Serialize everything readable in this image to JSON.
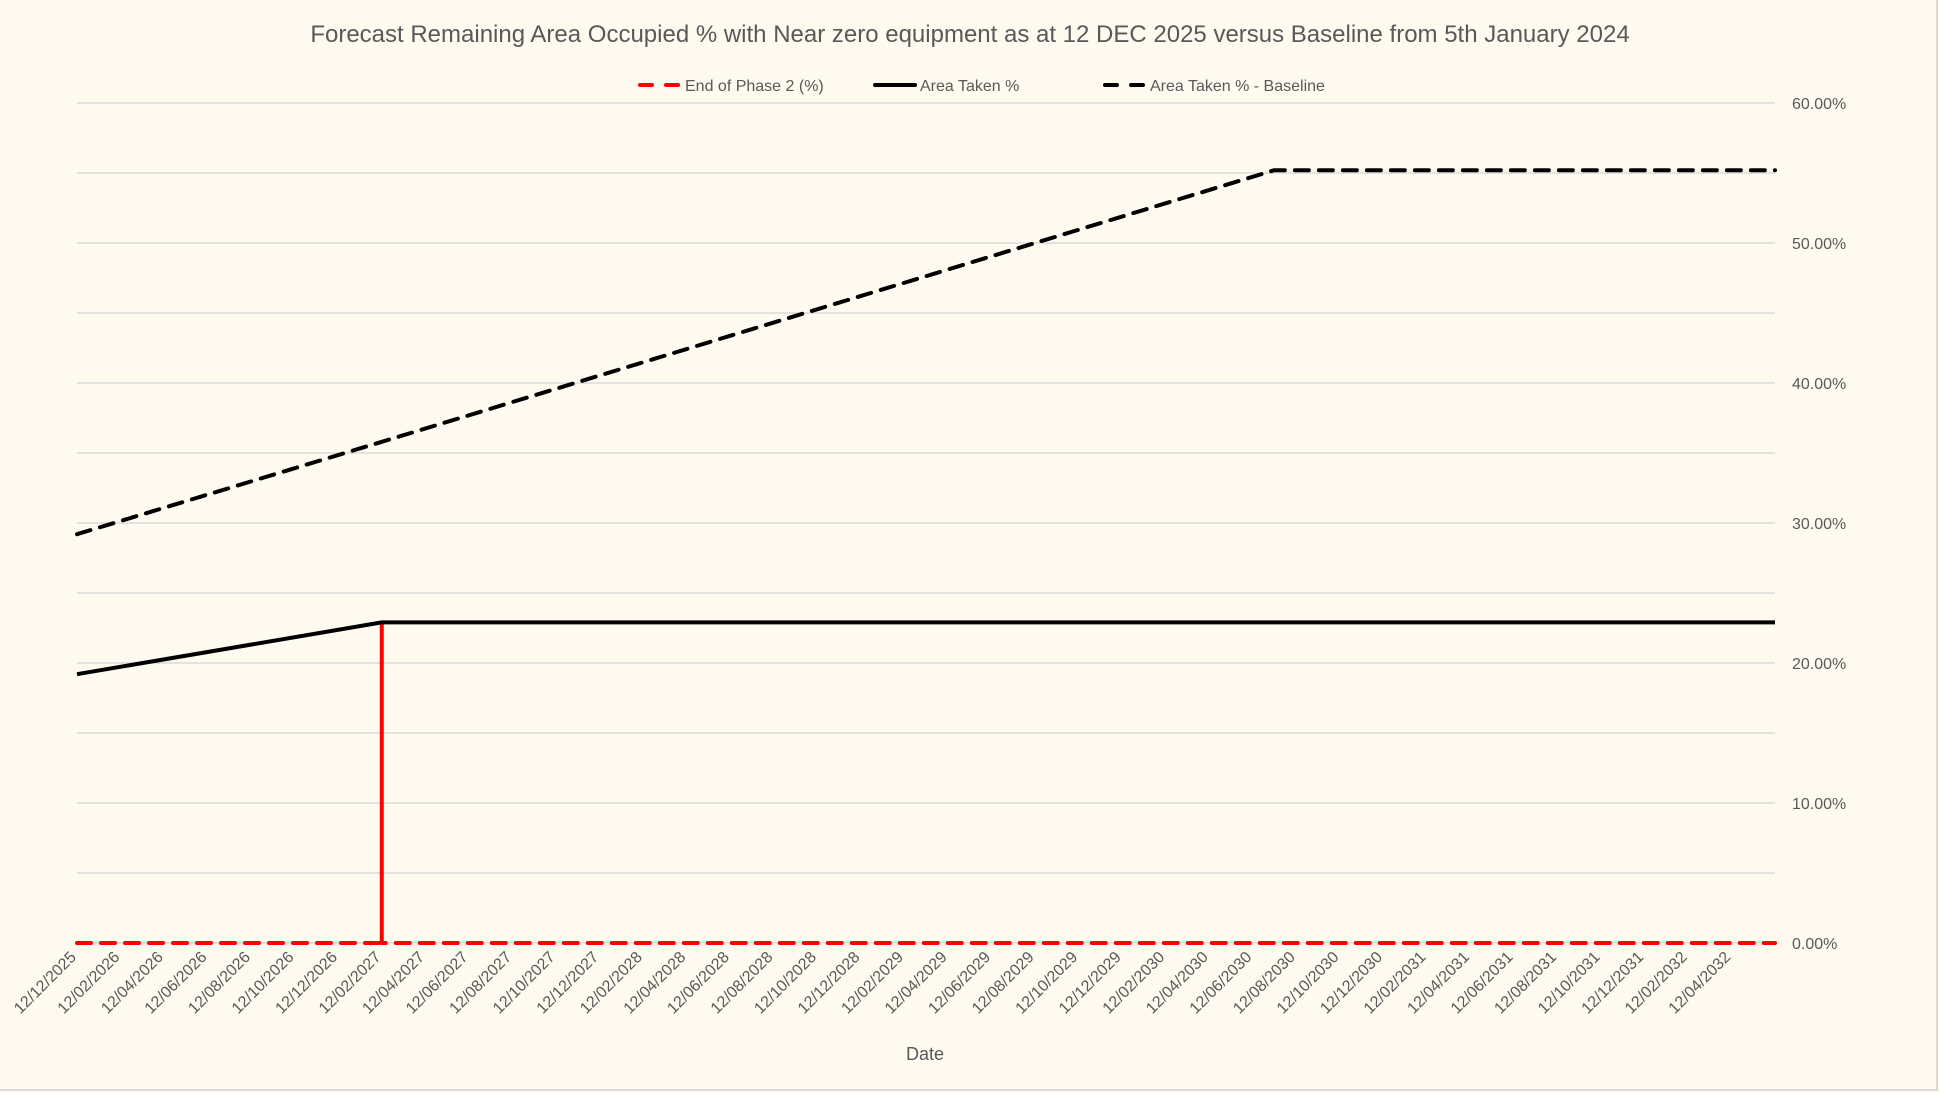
{
  "chart_data": {
    "type": "line",
    "title": "Forecast Remaining Area Occupied % with Near zero equipment as at 12 DEC 2025 versus Baseline from 5th January 2024",
    "xlabel": "Date",
    "ylabel": "",
    "ylim": [
      0,
      60
    ],
    "y_tick_step": 10,
    "y_gridline_step": 5,
    "y_axis_side": "right",
    "y_tick_labels": [
      "0.00%",
      "10.00%",
      "20.00%",
      "30.00%",
      "40.00%",
      "50.00%",
      "60.00%"
    ],
    "x_unit": "months since 12/12/2025",
    "xlim": [
      0,
      78
    ],
    "x_tick_labels": [
      "12/12/2025",
      "12/02/2026",
      "12/04/2026",
      "12/06/2026",
      "12/08/2026",
      "12/10/2026",
      "12/12/2026",
      "12/02/2027",
      "12/04/2027",
      "12/06/2027",
      "12/08/2027",
      "12/10/2027",
      "12/12/2027",
      "12/02/2028",
      "12/04/2028",
      "12/06/2028",
      "12/08/2028",
      "12/10/2028",
      "12/12/2028",
      "12/02/2029",
      "12/04/2029",
      "12/06/2029",
      "12/08/2029",
      "12/10/2029",
      "12/12/2029",
      "12/02/2030",
      "12/04/2030",
      "12/06/2030",
      "12/08/2030",
      "12/10/2030",
      "12/12/2030",
      "12/02/2031",
      "12/04/2031",
      "12/06/2031",
      "12/08/2031",
      "12/10/2031",
      "12/12/2031",
      "12/02/2032",
      "12/04/2032"
    ],
    "x_tick_step_months": 2,
    "legend_position": "top",
    "series": [
      {
        "name": "End of Phase 2 (%)",
        "color": "#ff0000",
        "dash": "dashed",
        "points": [
          [
            0,
            0
          ],
          [
            14,
            0
          ],
          [
            14,
            22.9
          ],
          [
            14,
            0
          ],
          [
            78,
            0
          ]
        ]
      },
      {
        "name": "Area Taken %",
        "color": "#000000",
        "dash": "solid",
        "points": [
          [
            0,
            19.2
          ],
          [
            14,
            22.9
          ],
          [
            78,
            22.9
          ]
        ]
      },
      {
        "name": "Area Taken % - Baseline",
        "color": "#000000",
        "dash": "dashed",
        "points": [
          [
            0,
            29.2
          ],
          [
            14,
            35.8
          ],
          [
            55,
            55.2
          ],
          [
            78,
            55.2
          ]
        ]
      }
    ]
  }
}
